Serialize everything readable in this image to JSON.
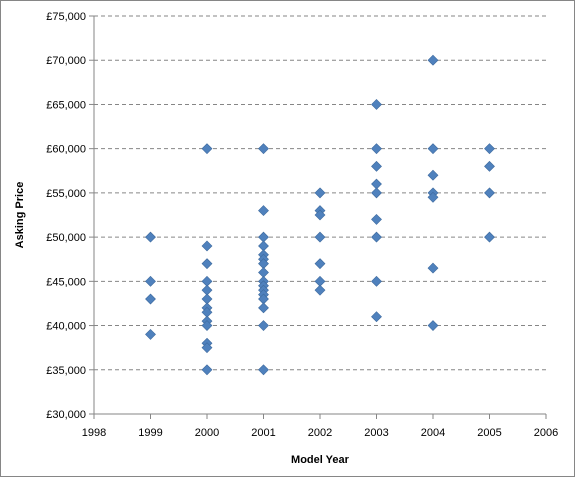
{
  "chart_data": {
    "type": "scatter",
    "xlabel": "Model Year",
    "ylabel": "Asking Price",
    "xlim": [
      1998,
      2006
    ],
    "ylim": [
      30000,
      75000
    ],
    "x_ticks": [
      "1998",
      "1999",
      "2000",
      "2001",
      "2002",
      "2003",
      "2004",
      "2005",
      "2006"
    ],
    "y_ticks": [
      "£30,000",
      "£35,000",
      "£40,000",
      "£45,000",
      "£50,000",
      "£55,000",
      "£60,000",
      "£65,000",
      "£70,000",
      "£75,000"
    ],
    "grid": "horizontal dashed",
    "marker": "diamond",
    "marker_color": "#4F81BD",
    "series": [
      {
        "points": [
          [
            1999,
            50000
          ],
          [
            1999,
            45000
          ],
          [
            1999,
            43000
          ],
          [
            1999,
            39000
          ],
          [
            2000,
            60000
          ],
          [
            2000,
            49000
          ],
          [
            2000,
            47000
          ],
          [
            2000,
            45000
          ],
          [
            2000,
            44000
          ],
          [
            2000,
            43000
          ],
          [
            2000,
            42000
          ],
          [
            2000,
            41500
          ],
          [
            2000,
            40500
          ],
          [
            2000,
            40000
          ],
          [
            2000,
            38000
          ],
          [
            2000,
            37500
          ],
          [
            2000,
            35000
          ],
          [
            2001,
            60000
          ],
          [
            2001,
            53000
          ],
          [
            2001,
            50000
          ],
          [
            2001,
            49000
          ],
          [
            2001,
            48000
          ],
          [
            2001,
            47500
          ],
          [
            2001,
            47000
          ],
          [
            2001,
            46000
          ],
          [
            2001,
            45000
          ],
          [
            2001,
            44500
          ],
          [
            2001,
            44000
          ],
          [
            2001,
            43500
          ],
          [
            2001,
            43000
          ],
          [
            2001,
            42000
          ],
          [
            2001,
            40000
          ],
          [
            2001,
            35000
          ],
          [
            2002,
            55000
          ],
          [
            2002,
            53000
          ],
          [
            2002,
            52500
          ],
          [
            2002,
            50000
          ],
          [
            2002,
            47000
          ],
          [
            2002,
            45000
          ],
          [
            2002,
            44000
          ],
          [
            2003,
            65000
          ],
          [
            2003,
            60000
          ],
          [
            2003,
            58000
          ],
          [
            2003,
            56000
          ],
          [
            2003,
            55000
          ],
          [
            2003,
            52000
          ],
          [
            2003,
            50000
          ],
          [
            2003,
            45000
          ],
          [
            2003,
            41000
          ],
          [
            2004,
            70000
          ],
          [
            2004,
            60000
          ],
          [
            2004,
            57000
          ],
          [
            2004,
            55000
          ],
          [
            2004,
            54500
          ],
          [
            2004,
            46500
          ],
          [
            2004,
            40000
          ],
          [
            2005,
            60000
          ],
          [
            2005,
            58000
          ],
          [
            2005,
            55000
          ],
          [
            2005,
            50000
          ]
        ]
      }
    ]
  }
}
